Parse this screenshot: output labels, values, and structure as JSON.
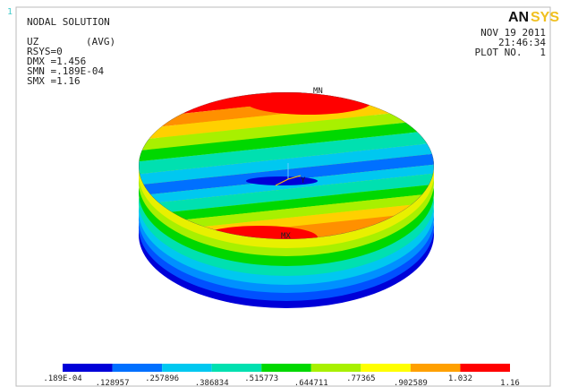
{
  "window_index": "1",
  "header": {
    "lines": [
      "NODAL SOLUTION",
      "RSYS=0",
      "DMX =1.456",
      "SMN =.189E-04",
      "SMX =1.16"
    ],
    "quantity": "UZ",
    "averaging": "(AVG)"
  },
  "stamp": {
    "date": "NOV 19 2011",
    "time": "21:46:34",
    "plot": "PLOT NO.   1"
  },
  "logo": {
    "left": "AN",
    "right": "SYS"
  },
  "markers": {
    "max": "MX",
    "min": "MN",
    "axis": "Y"
  },
  "legend": {
    "colors": [
      "#0000d8",
      "#0070ff",
      "#00c8f0",
      "#00e0b0",
      "#00d800",
      "#a8f000",
      "#ffff00",
      "#ffa000",
      "#ff0000"
    ],
    "labels": [
      ".189E-04",
      ".128957",
      ".257896",
      ".386834",
      ".515773",
      ".644711",
      ".77365",
      ".902589",
      "1.032",
      "1.16"
    ]
  }
}
